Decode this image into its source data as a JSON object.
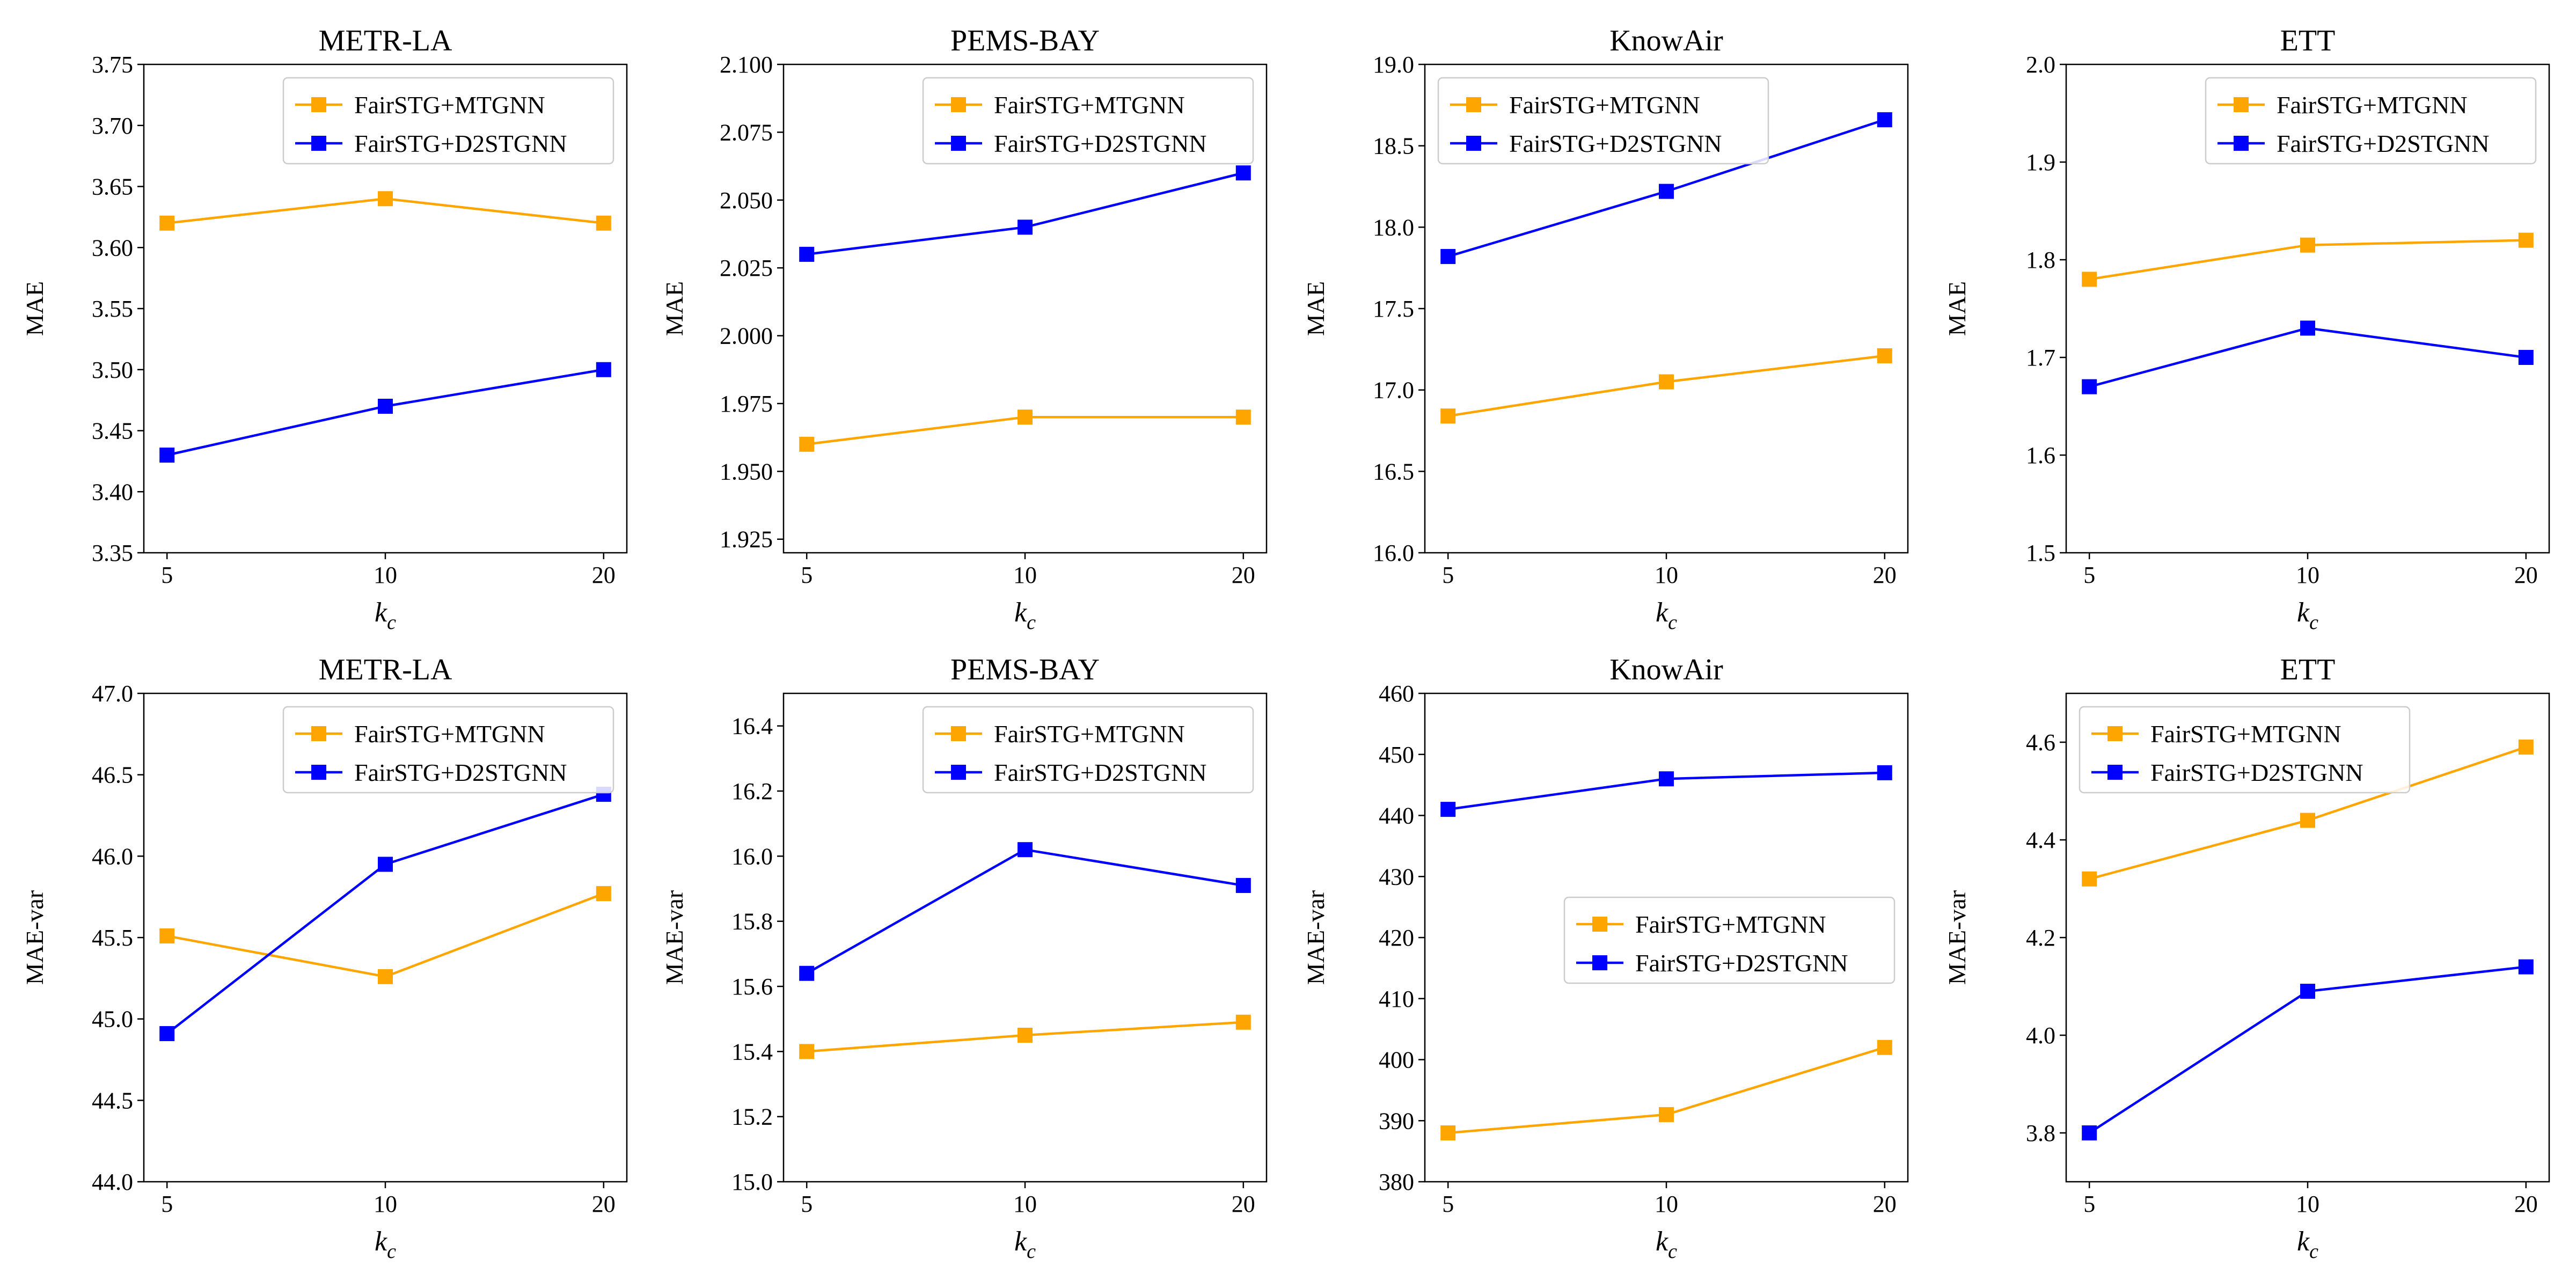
{
  "figure": {
    "colors": {
      "mtgnn": "#FFA500",
      "d2stgnn": "#0000FF"
    },
    "xlabel_base": "k",
    "xlabel_sub": "c"
  },
  "chart_data": [
    {
      "type": "line",
      "title": "METR-LA",
      "ylabel": "MAE",
      "x": [
        5,
        10,
        20
      ],
      "categories": [
        "5",
        "10",
        "20"
      ],
      "ylim": [
        3.35,
        3.75
      ],
      "yticks": [
        "3.35",
        "3.40",
        "3.45",
        "3.50",
        "3.55",
        "3.60",
        "3.65",
        "3.70",
        "3.75"
      ],
      "legend": "top-right",
      "series": [
        {
          "name": "FairSTG+MTGNN",
          "values": [
            3.62,
            3.64,
            3.62
          ]
        },
        {
          "name": "FairSTG+D2STGNN",
          "values": [
            3.43,
            3.47,
            3.5
          ]
        }
      ]
    },
    {
      "type": "line",
      "title": "PEMS-BAY",
      "ylabel": "MAE",
      "x": [
        5,
        10,
        20
      ],
      "categories": [
        "5",
        "10",
        "20"
      ],
      "ylim": [
        1.92,
        2.1
      ],
      "yticks": [
        "1.925",
        "1.950",
        "1.975",
        "2.000",
        "2.025",
        "2.050",
        "2.075",
        "2.100"
      ],
      "legend": "top-right",
      "series": [
        {
          "name": "FairSTG+MTGNN",
          "values": [
            1.96,
            1.97,
            1.97
          ]
        },
        {
          "name": "FairSTG+D2STGNN",
          "values": [
            2.03,
            2.04,
            2.06
          ]
        }
      ]
    },
    {
      "type": "line",
      "title": "KnowAir",
      "ylabel": "MAE",
      "x": [
        5,
        10,
        20
      ],
      "categories": [
        "5",
        "10",
        "20"
      ],
      "ylim": [
        16.0,
        19.0
      ],
      "yticks": [
        "16.0",
        "16.5",
        "17.0",
        "17.5",
        "18.0",
        "18.5",
        "19.0"
      ],
      "legend": "top-left",
      "series": [
        {
          "name": "FairSTG+MTGNN",
          "values": [
            16.84,
            17.05,
            17.21
          ]
        },
        {
          "name": "FairSTG+D2STGNN",
          "values": [
            17.82,
            18.22,
            18.66
          ]
        }
      ]
    },
    {
      "type": "line",
      "title": "ETT",
      "ylabel": "MAE",
      "x": [
        5,
        10,
        20
      ],
      "categories": [
        "5",
        "10",
        "20"
      ],
      "ylim": [
        1.5,
        2.0
      ],
      "yticks": [
        "1.5",
        "1.6",
        "1.7",
        "1.8",
        "1.9",
        "2.0"
      ],
      "legend": "top-right",
      "series": [
        {
          "name": "FairSTG+MTGNN",
          "values": [
            1.78,
            1.815,
            1.82
          ]
        },
        {
          "name": "FairSTG+D2STGNN",
          "values": [
            1.67,
            1.73,
            1.7
          ]
        }
      ]
    },
    {
      "type": "line",
      "title": "METR-LA",
      "ylabel": "MAE-var",
      "x": [
        5,
        10,
        20
      ],
      "categories": [
        "5",
        "10",
        "20"
      ],
      "ylim": [
        44.0,
        47.0
      ],
      "yticks": [
        "44.0",
        "44.5",
        "45.0",
        "45.5",
        "46.0",
        "46.5",
        "47.0"
      ],
      "legend": "top-right",
      "series": [
        {
          "name": "FairSTG+MTGNN",
          "values": [
            45.51,
            45.26,
            45.77
          ]
        },
        {
          "name": "FairSTG+D2STGNN",
          "values": [
            44.91,
            45.95,
            46.38
          ]
        }
      ]
    },
    {
      "type": "line",
      "title": "PEMS-BAY",
      "ylabel": "MAE-var",
      "x": [
        5,
        10,
        20
      ],
      "categories": [
        "5",
        "10",
        "20"
      ],
      "ylim": [
        15.0,
        16.5
      ],
      "yticks": [
        "15.0",
        "15.2",
        "15.4",
        "15.6",
        "15.8",
        "16.0",
        "16.2",
        "16.4"
      ],
      "legend": "top-right",
      "series": [
        {
          "name": "FairSTG+MTGNN",
          "values": [
            15.4,
            15.45,
            15.49
          ]
        },
        {
          "name": "FairSTG+D2STGNN",
          "values": [
            15.64,
            16.02,
            15.91
          ]
        }
      ]
    },
    {
      "type": "line",
      "title": "KnowAir",
      "ylabel": "MAE-var",
      "x": [
        5,
        10,
        20
      ],
      "categories": [
        "5",
        "10",
        "20"
      ],
      "ylim": [
        380,
        460
      ],
      "yticks": [
        "380",
        "390",
        "400",
        "410",
        "420",
        "430",
        "440",
        "450",
        "460"
      ],
      "legend": "center-right",
      "series": [
        {
          "name": "FairSTG+MTGNN",
          "values": [
            388,
            391,
            402
          ]
        },
        {
          "name": "FairSTG+D2STGNN",
          "values": [
            441,
            446,
            447
          ]
        }
      ]
    },
    {
      "type": "line",
      "title": "ETT",
      "ylabel": "MAE-var",
      "x": [
        5,
        10,
        20
      ],
      "categories": [
        "5",
        "10",
        "20"
      ],
      "ylim": [
        3.7,
        4.7
      ],
      "yticks": [
        "3.8",
        "4.0",
        "4.2",
        "4.4",
        "4.6"
      ],
      "legend": "top-left",
      "series": [
        {
          "name": "FairSTG+MTGNN",
          "values": [
            4.32,
            4.44,
            4.59
          ]
        },
        {
          "name": "FairSTG+D2STGNN",
          "values": [
            3.8,
            4.09,
            4.14
          ]
        }
      ]
    }
  ]
}
